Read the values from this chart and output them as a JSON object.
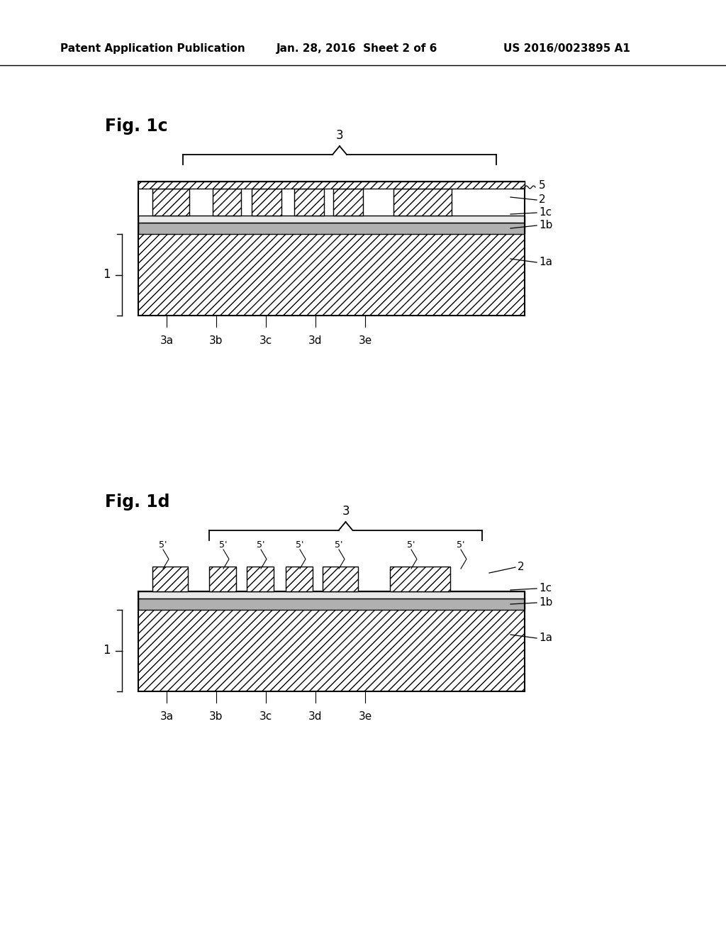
{
  "bg_color": "#ffffff",
  "header_text": "Patent Application Publication",
  "header_date": "Jan. 28, 2016  Sheet 2 of 6",
  "header_patent": "US 2016/0023895 A1",
  "fig1c_label": "Fig. 1c",
  "fig1d_label": "Fig. 1d",
  "label_1": "1",
  "label_1a": "1a",
  "label_1b": "1b",
  "label_1c": "1c",
  "label_2": "2",
  "label_3": "3",
  "label_5": "5",
  "label_3a": "3a",
  "label_3b": "3b",
  "label_3c": "3c",
  "label_3d": "3d",
  "label_3e": "3e",
  "label_5prime": "5'",
  "hatch_color": "#000000",
  "line_color": "#000000",
  "fill_light": "#d0d0d0",
  "fill_dark": "#808080",
  "fill_white": "#ffffff"
}
